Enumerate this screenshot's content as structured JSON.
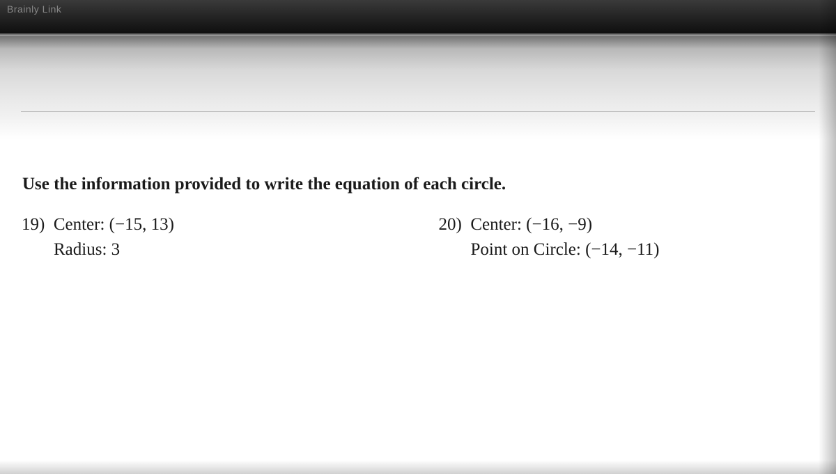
{
  "tab": {
    "text": "Brainly Link"
  },
  "worksheet": {
    "instructions": "Use the information provided to write the equation of each circle.",
    "problems": {
      "p19": {
        "number": "19)",
        "line1_label": "Center:",
        "line1_value": "(−15, 13)",
        "line2_label": "Radius:",
        "line2_value": "3"
      },
      "p20": {
        "number": "20)",
        "line1_label": "Center:",
        "line1_value": "(−16, −9)",
        "line2_label": "Point on Circle:",
        "line2_value": "(−14, −11)"
      }
    }
  }
}
